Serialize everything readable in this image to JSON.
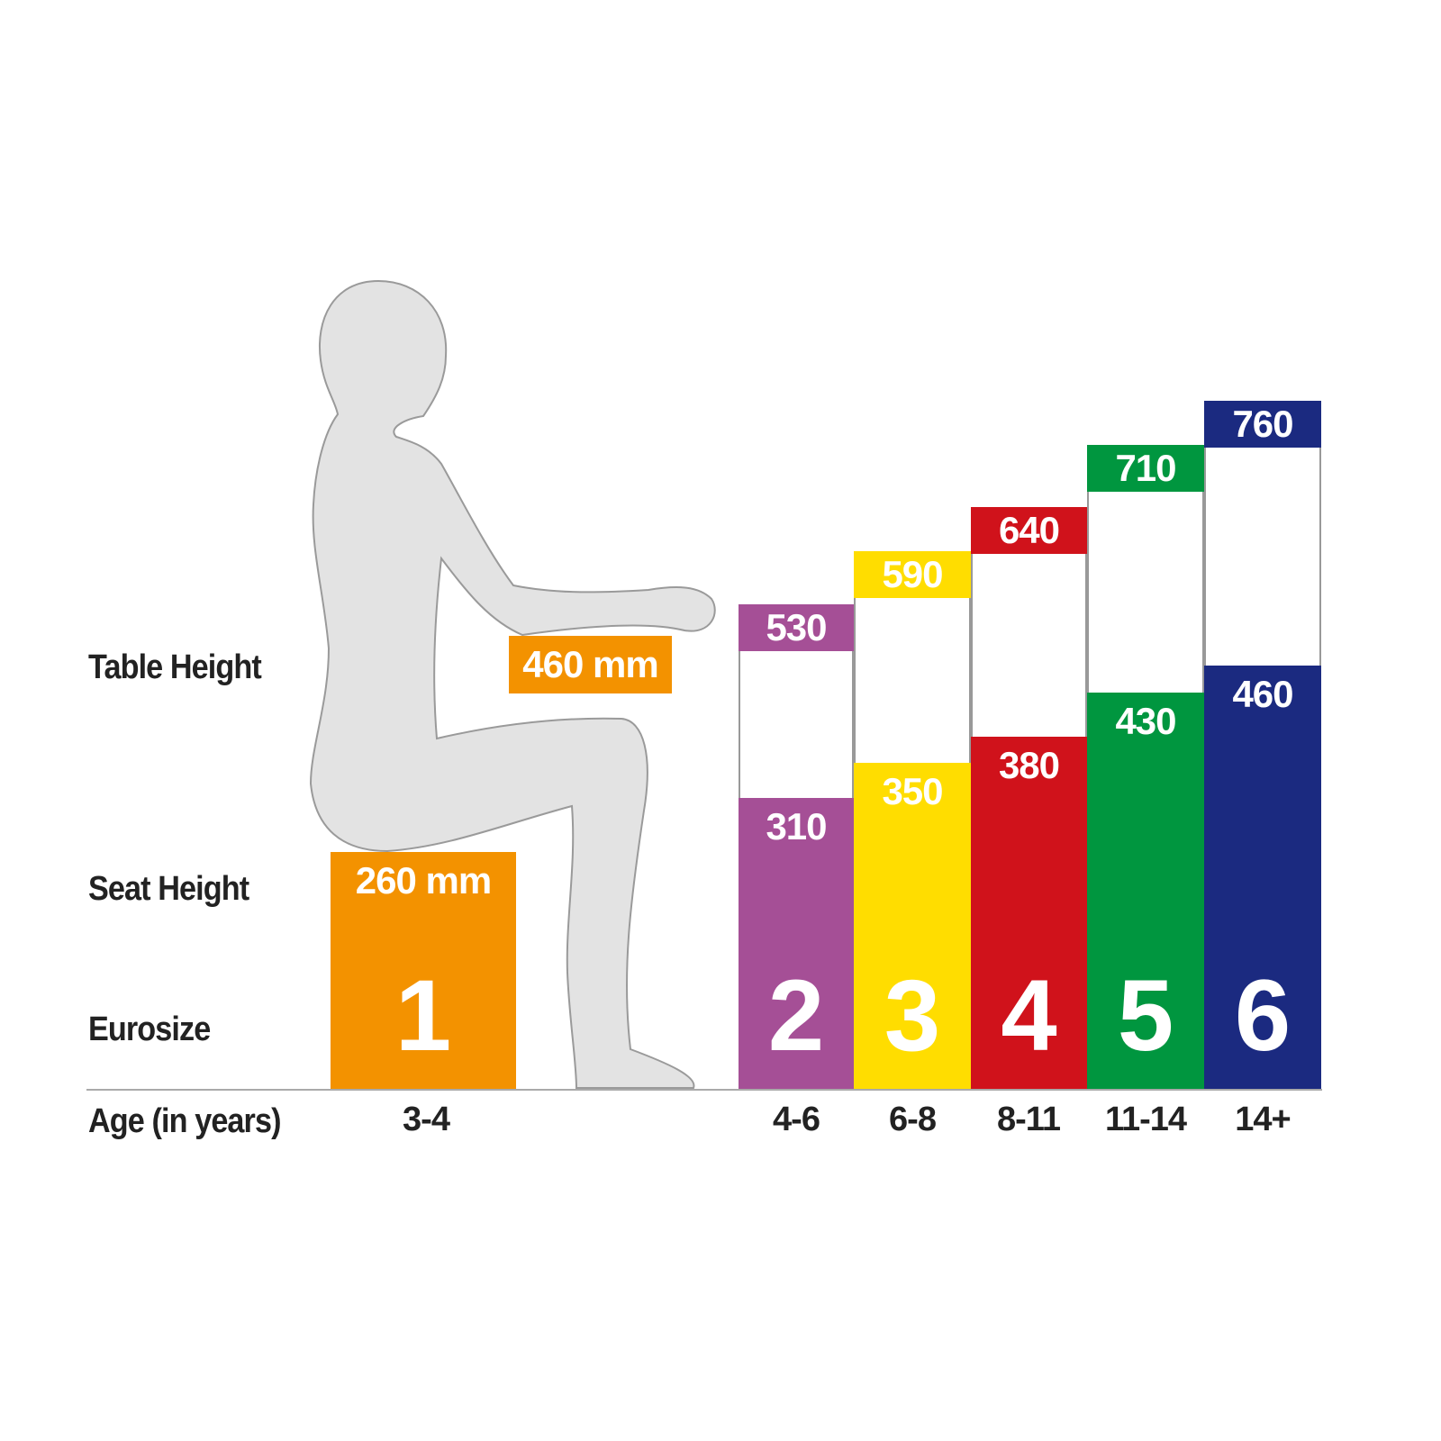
{
  "chart_data": {
    "type": "bar",
    "row_labels": {
      "table": "Table Height",
      "seat": "Seat Height",
      "size": "Eurosize",
      "age": "Age (in years)"
    },
    "categories": [
      "1",
      "2",
      "3",
      "4",
      "5",
      "6"
    ],
    "ages": [
      "3-4",
      "4-6",
      "6-8",
      "8-11",
      "11-14",
      "14+"
    ],
    "series": [
      {
        "name": "Seat Height",
        "values": [
          260,
          310,
          350,
          380,
          430,
          460
        ]
      },
      {
        "name": "Table Height",
        "values": [
          460,
          530,
          590,
          640,
          710,
          760
        ]
      }
    ],
    "size1_labels": {
      "seat": "260 mm",
      "table": "460 mm"
    },
    "colors": [
      "#f39200",
      "#a54f96",
      "#ffdd00",
      "#d0121b",
      "#00963f",
      "#1b2a80"
    ],
    "figure_color": "#e3e3e3"
  }
}
